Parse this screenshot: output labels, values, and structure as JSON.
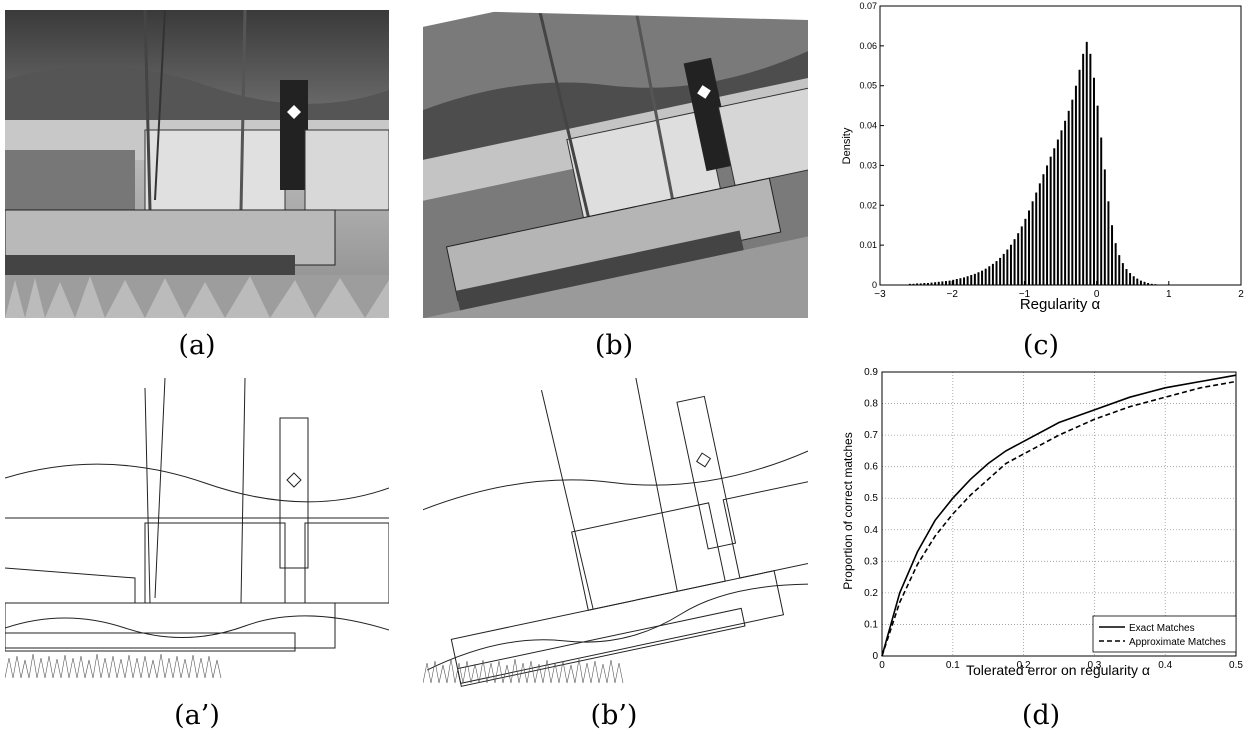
{
  "captions": {
    "a": "(a)",
    "b": "(b)",
    "c": "(c)",
    "a_prime": "(a’)",
    "b_prime": "(b’)",
    "d": "(d)"
  },
  "photo_a": {
    "description": "Grayscale photo of boats moored in a harbor with hills behind"
  },
  "photo_b": {
    "description": "Same harbor photo rotated slightly"
  },
  "edges_a": {
    "description": "Edge map of photo (a)"
  },
  "edges_b": {
    "description": "Edge map of photo (b)"
  },
  "chart_data": [
    {
      "type": "bar",
      "panel": "c",
      "xlabel": "Regularity α",
      "ylabel": "Density",
      "xlim": [
        -3,
        2
      ],
      "ylim": [
        0,
        0.07
      ],
      "xticks": [
        "−3",
        "−2",
        "−1",
        "0",
        "1",
        "2"
      ],
      "yticks": [
        "0",
        "0.01",
        "0.02",
        "0.03",
        "0.04",
        "0.05",
        "0.06",
        "0.07"
      ],
      "grid": false,
      "bin_width": 0.05,
      "x": [
        -2.6,
        -2.55,
        -2.5,
        -2.45,
        -2.4,
        -2.35,
        -2.3,
        -2.25,
        -2.2,
        -2.15,
        -2.1,
        -2.05,
        -2.0,
        -1.95,
        -1.9,
        -1.85,
        -1.8,
        -1.75,
        -1.7,
        -1.65,
        -1.6,
        -1.55,
        -1.5,
        -1.45,
        -1.4,
        -1.35,
        -1.3,
        -1.25,
        -1.2,
        -1.15,
        -1.1,
        -1.05,
        -1.0,
        -0.95,
        -0.9,
        -0.85,
        -0.8,
        -0.75,
        -0.7,
        -0.65,
        -0.6,
        -0.55,
        -0.5,
        -0.45,
        -0.4,
        -0.35,
        -0.3,
        -0.25,
        -0.2,
        -0.15,
        -0.1,
        -0.05,
        0.0,
        0.05,
        0.1,
        0.15,
        0.2,
        0.25,
        0.3,
        0.35,
        0.4,
        0.45,
        0.5,
        0.55,
        0.6,
        0.65,
        0.7,
        0.75,
        0.8
      ],
      "values": [
        0.0003,
        0.0003,
        0.0004,
        0.0004,
        0.0005,
        0.0005,
        0.0006,
        0.0007,
        0.0008,
        0.0009,
        0.001,
        0.0011,
        0.0013,
        0.0015,
        0.0017,
        0.0019,
        0.0022,
        0.0025,
        0.0028,
        0.0032,
        0.0036,
        0.0041,
        0.0047,
        0.0053,
        0.006,
        0.0068,
        0.0078,
        0.0089,
        0.0101,
        0.0115,
        0.013,
        0.0147,
        0.0166,
        0.0187,
        0.021,
        0.0232,
        0.0255,
        0.0278,
        0.03,
        0.0322,
        0.0343,
        0.0365,
        0.0388,
        0.0412,
        0.0437,
        0.0465,
        0.05,
        0.054,
        0.058,
        0.061,
        0.058,
        0.052,
        0.045,
        0.037,
        0.029,
        0.021,
        0.015,
        0.0105,
        0.0075,
        0.0055,
        0.004,
        0.003,
        0.0022,
        0.0016,
        0.0011,
        0.0008,
        0.0005,
        0.0003,
        0.0002
      ]
    },
    {
      "type": "line",
      "panel": "d",
      "xlabel": "Tolerated error on regularity α",
      "ylabel": "Proportion of correct matches",
      "xlim": [
        0,
        0.5
      ],
      "ylim": [
        0,
        0.9
      ],
      "xticks": [
        "0",
        "0.1",
        "0.2",
        "0.3",
        "0.4",
        "0.5"
      ],
      "yticks": [
        "0",
        "0.1",
        "0.2",
        "0.3",
        "0.4",
        "0.5",
        "0.6",
        "0.7",
        "0.8",
        "0.9"
      ],
      "grid": true,
      "legend": "bottom-right",
      "x": [
        0,
        0.025,
        0.05,
        0.075,
        0.1,
        0.125,
        0.15,
        0.175,
        0.2,
        0.25,
        0.3,
        0.35,
        0.4,
        0.45,
        0.5
      ],
      "series": [
        {
          "name": "Exact Matches",
          "style": "solid",
          "values": [
            0,
            0.2,
            0.33,
            0.43,
            0.5,
            0.56,
            0.61,
            0.65,
            0.68,
            0.74,
            0.78,
            0.82,
            0.85,
            0.87,
            0.89
          ]
        },
        {
          "name": "Approximate Matches",
          "style": "dashed",
          "values": [
            0,
            0.17,
            0.29,
            0.38,
            0.45,
            0.51,
            0.56,
            0.61,
            0.64,
            0.7,
            0.75,
            0.79,
            0.82,
            0.85,
            0.87
          ]
        }
      ]
    }
  ]
}
